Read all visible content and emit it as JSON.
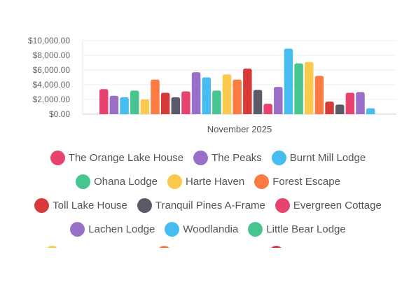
{
  "chart_data": {
    "type": "bar",
    "categories": [
      "November 2025"
    ],
    "xlabel": "",
    "ylabel": "",
    "ylim": [
      0,
      10000
    ],
    "yticks": [
      "$0.00",
      "$2,000.00",
      "$4,000.00",
      "$6,000.00",
      "$8,000.00",
      "$10,000.00"
    ],
    "grid": true,
    "legend_position": "bottom",
    "series": [
      {
        "name": "The Orange Lake House",
        "value": 3400,
        "color": "#e8436f"
      },
      {
        "name": "The Peaks",
        "value": 2500,
        "color": "#9a6fc8"
      },
      {
        "name": "Burnt Mill Lodge",
        "value": 2300,
        "color": "#45bdf0"
      },
      {
        "name": "Ohana Lodge",
        "value": 3200,
        "color": "#47c48f"
      },
      {
        "name": "Harte Haven",
        "value": 2000,
        "color": "#fbc94c"
      },
      {
        "name": "Forest Escape",
        "value": 4700,
        "color": "#fc7b42"
      },
      {
        "name": "Toll Lake House",
        "value": 2900,
        "color": "#d83a3a"
      },
      {
        "name": "Tranquil Pines A-Frame",
        "value": 2300,
        "color": "#5b5a6a"
      },
      {
        "name": "Evergreen Cottage",
        "value": 3100,
        "color": "#e8436f"
      },
      {
        "name": "Lachen Lodge",
        "value": 5700,
        "color": "#9a6fc8"
      },
      {
        "name": "Woodlandia",
        "value": 5000,
        "color": "#45bdf0"
      },
      {
        "name": "Little Bear Lodge",
        "value": 3200,
        "color": "#47c48f"
      },
      {
        "name": "",
        "value": 5400,
        "color": "#fbc94c"
      },
      {
        "name": "",
        "value": 4700,
        "color": "#fc7b42"
      },
      {
        "name": "",
        "value": 6200,
        "color": "#d83a3a"
      },
      {
        "name": "",
        "value": 3300,
        "color": "#5b5a6a"
      },
      {
        "name": "",
        "value": 1400,
        "color": "#e8436f"
      },
      {
        "name": "",
        "value": 3700,
        "color": "#9a6fc8"
      },
      {
        "name": "",
        "value": 8900,
        "color": "#45bdf0"
      },
      {
        "name": "",
        "value": 6900,
        "color": "#47c48f"
      },
      {
        "name": "",
        "value": 7100,
        "color": "#fbc94c"
      },
      {
        "name": "",
        "value": 5200,
        "color": "#fc7b42"
      },
      {
        "name": "",
        "value": 1700,
        "color": "#d83a3a"
      },
      {
        "name": "",
        "value": 1300,
        "color": "#5b5a6a"
      },
      {
        "name": "",
        "value": 2900,
        "color": "#e8436f"
      },
      {
        "name": "",
        "value": 3000,
        "color": "#9a6fc8"
      },
      {
        "name": "",
        "value": 800,
        "color": "#45bdf0"
      }
    ]
  }
}
